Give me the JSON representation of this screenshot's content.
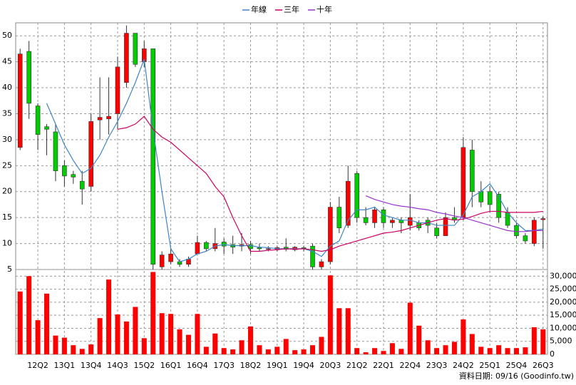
{
  "chart_data": [
    {
      "type": "candlestick",
      "open": [
        28.5,
        47,
        36.5,
        32.5,
        31.5,
        25,
        23.3,
        22,
        21,
        33.8,
        34,
        35,
        41,
        50.5,
        45,
        47.5,
        5.5,
        6.5,
        6.5,
        6,
        8,
        10.2,
        9,
        10.3,
        9.8,
        9.5,
        9.8,
        9.2,
        9,
        8.8,
        9.3,
        8.8,
        9.2,
        9.5,
        5.5,
        6.5,
        17,
        13.5,
        23.5,
        15,
        14,
        16.5,
        14,
        14.5,
        13.5,
        14,
        14.5,
        13,
        11.5,
        15,
        15,
        28,
        20,
        20,
        19.5,
        16,
        13.5,
        11.5,
        10,
        14.6
      ],
      "high": [
        47.5,
        49,
        37,
        33,
        33,
        26,
        24,
        24,
        35,
        42,
        42,
        46,
        52,
        50.5,
        49,
        47.5,
        8.5,
        9,
        7,
        7.5,
        11.5,
        10.5,
        13,
        11,
        11.5,
        12,
        10.5,
        10,
        9.5,
        9.5,
        11,
        9.5,
        9.5,
        10,
        7,
        18,
        19,
        25,
        24,
        17,
        17,
        17,
        15,
        15,
        19.5,
        14.5,
        15,
        14,
        16,
        17,
        30.5,
        30,
        22,
        21,
        20,
        17,
        14,
        12,
        15,
        15.2
      ],
      "low": [
        28,
        34,
        28,
        27,
        22,
        21,
        21.5,
        17.5,
        20,
        30,
        31,
        32,
        40,
        44,
        44,
        5,
        5,
        6,
        5.5,
        5.5,
        8,
        8.5,
        8.5,
        8,
        8,
        8.5,
        8,
        8.5,
        8.5,
        8.5,
        8.5,
        8.5,
        8.5,
        5,
        5,
        6,
        12,
        13,
        14,
        13.5,
        13,
        13,
        13,
        12,
        12.5,
        12.5,
        12,
        11,
        11.5,
        14,
        14.5,
        17,
        17,
        16,
        14,
        13,
        11,
        10,
        9.5,
        9
      ],
      "close": [
        46.5,
        37,
        31,
        32,
        24,
        23,
        22.8,
        20.5,
        33.5,
        34.3,
        34.5,
        44,
        50.5,
        44.5,
        47.5,
        6,
        7.8,
        8,
        6,
        7,
        10.2,
        9,
        10,
        9.5,
        9.3,
        9.8,
        9,
        9,
        9,
        9.2,
        8.9,
        9.3,
        9,
        5.5,
        6.5,
        17,
        13,
        22,
        15,
        14,
        16.5,
        14,
        14.5,
        14,
        15,
        13,
        13.5,
        11.5,
        15,
        14.5,
        28.5,
        20,
        18,
        17.5,
        15,
        13.5,
        11.5,
        10.5,
        14.5,
        14.8
      ],
      "up_color": "#ff0000",
      "down_color": "#00cc00",
      "series": [
        {
          "name": "年線",
          "color": "#3d85c6",
          "values": [
            null,
            null,
            null,
            37,
            33,
            29,
            26,
            23.5,
            24.5,
            27,
            30.5,
            33.5,
            37,
            41,
            45.5,
            32,
            20,
            9,
            6.5,
            7,
            8,
            8.5,
            9.5,
            9.8,
            9.6,
            9.6,
            9.6,
            9.3,
            9.2,
            9,
            9,
            9,
            9,
            8.5,
            7.5,
            9.5,
            10.5,
            14.5,
            16.5,
            16.5,
            17,
            15.5,
            15,
            14.5,
            14.5,
            14,
            14,
            13.5,
            13.5,
            13.5,
            15.5,
            19,
            20,
            21.5,
            19,
            16,
            14,
            12.5,
            12.5,
            12.8
          ]
        },
        {
          "name": "三年",
          "color": "#cc0066",
          "values": [
            null,
            null,
            null,
            null,
            null,
            null,
            null,
            null,
            null,
            null,
            null,
            32,
            32.3,
            33,
            34.5,
            32,
            30.5,
            29.5,
            28,
            26.5,
            25,
            23.5,
            21,
            19,
            15,
            11.5,
            8.5,
            8.5,
            8.7,
            8.8,
            9,
            8.9,
            9,
            8.8,
            8.5,
            8.8,
            9.5,
            10,
            10.5,
            11,
            11.5,
            12,
            12.2,
            12.5,
            13,
            13.5,
            14,
            14.5,
            14.8,
            14.5,
            14.7,
            15.2,
            15.8,
            16.2,
            16.2,
            16,
            16,
            16,
            16,
            16.2
          ]
        },
        {
          "name": "十年",
          "color": "#9933cc",
          "values": [
            null,
            null,
            null,
            null,
            null,
            null,
            null,
            null,
            null,
            null,
            null,
            null,
            null,
            null,
            null,
            null,
            null,
            null,
            null,
            null,
            null,
            null,
            null,
            null,
            null,
            null,
            null,
            null,
            null,
            null,
            null,
            null,
            null,
            null,
            null,
            null,
            null,
            null,
            null,
            19.2,
            18.5,
            18,
            17.5,
            17.2,
            17,
            16.7,
            16.5,
            16,
            15.7,
            15.3,
            15,
            14.5,
            14,
            13.5,
            13,
            12.5,
            12.3,
            12.3,
            12.5,
            12.5
          ]
        }
      ],
      "ylim": [
        5,
        52.5
      ],
      "yticks": [
        5,
        10,
        15,
        20,
        25,
        30,
        35,
        40,
        45,
        50
      ],
      "grid": true,
      "legend": "top"
    },
    {
      "type": "bar",
      "categories": [
        null,
        null,
        "12Q2",
        null,
        null,
        "13Q1",
        null,
        null,
        "13Q4",
        null,
        null,
        "14Q3",
        null,
        null,
        "15Q2",
        null,
        null,
        "16Q1",
        null,
        null,
        "16Q4",
        null,
        null,
        "17Q3",
        null,
        null,
        "18Q2",
        null,
        null,
        "19Q1",
        null,
        null,
        "19Q4",
        null,
        null,
        "20Q3",
        null,
        null,
        "21Q2",
        null,
        null,
        "22Q1",
        null,
        null,
        "22Q4",
        null,
        null,
        "23Q3",
        null,
        null,
        "24Q2",
        null,
        null,
        "25Q1",
        null,
        null,
        "25Q4",
        null,
        null,
        "26Q3"
      ],
      "values": [
        24100,
        30000,
        13100,
        23300,
        7200,
        6400,
        3500,
        2100,
        3800,
        13900,
        28700,
        15300,
        12600,
        18200,
        6200,
        31600,
        15800,
        15500,
        9600,
        7500,
        15500,
        2900,
        8000,
        2400,
        1900,
        5400,
        10700,
        3500,
        1900,
        2900,
        5900,
        1600,
        1900,
        3500,
        6700,
        30300,
        17700,
        17700,
        2400,
        800,
        2400,
        1300,
        4300,
        2100,
        19800,
        11000,
        5400,
        2400,
        3500,
        4800,
        13400,
        7800,
        2900,
        2400,
        3500,
        2400,
        2400,
        2700,
        10400,
        9600
      ],
      "color": "#ff0000",
      "ylim": [
        0,
        32000
      ],
      "yticks": [
        0,
        {
          "value": 5000,
          "label": "5,000"
        },
        {
          "value": 10000,
          "label": "10,000"
        },
        {
          "value": 15000,
          "label": "15,000"
        },
        {
          "value": 20000,
          "label": "20,000"
        },
        {
          "value": 25000,
          "label": "25,000"
        },
        {
          "value": 30000,
          "label": "30,000"
        }
      ],
      "grid": true,
      "footnote": "資料日期: 09/16 (Goodinfo.tw)"
    }
  ]
}
